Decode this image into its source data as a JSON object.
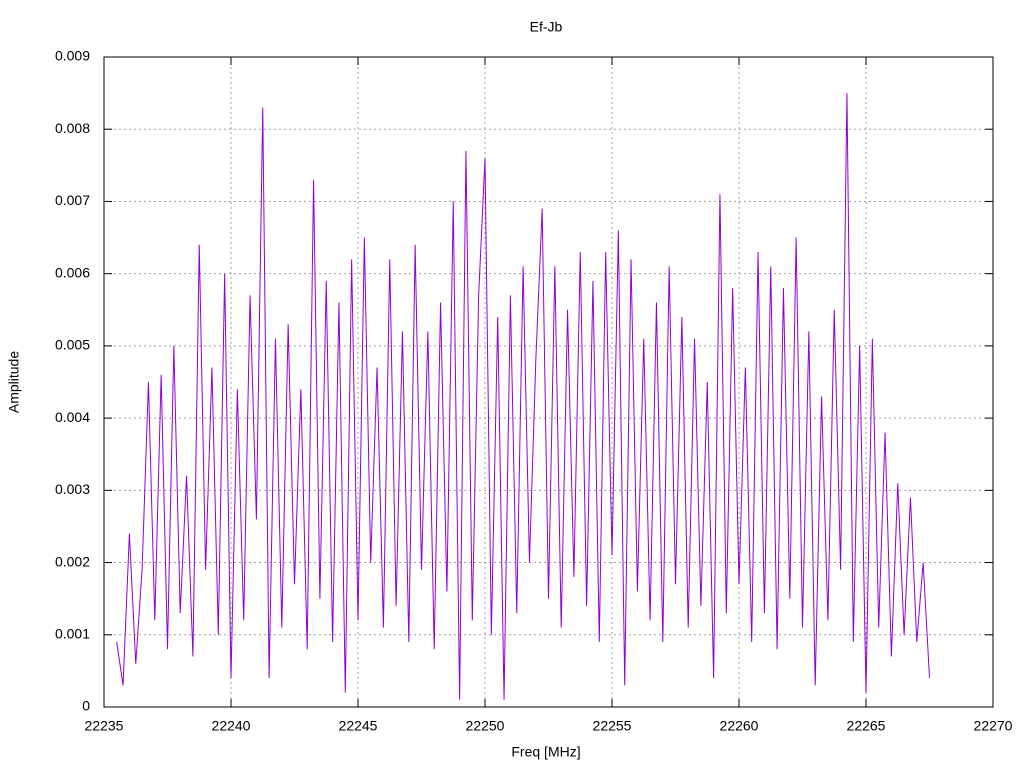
{
  "chart_data": {
    "type": "line",
    "title": "Ef-Jb",
    "xlabel": "Freq [MHz]",
    "ylabel": "Amplitude",
    "color": "#9400d3",
    "grid": true,
    "xlim": [
      22235,
      22270
    ],
    "xticks": [
      22235,
      22240,
      22245,
      22250,
      22255,
      22260,
      22265,
      22270
    ],
    "ylim": [
      0,
      0.009
    ],
    "yticks": [
      0,
      0.001,
      0.002,
      0.003,
      0.004,
      0.005,
      0.006,
      0.007,
      0.008,
      0.009
    ],
    "x": [
      22235.5,
      22235.75,
      22236,
      22236.25,
      22236.5,
      22236.75,
      22237,
      22237.25,
      22237.5,
      22237.75,
      22238,
      22238.25,
      22238.5,
      22238.75,
      22239,
      22239.25,
      22239.5,
      22239.75,
      22240,
      22240.25,
      22240.5,
      22240.75,
      22241,
      22241.25,
      22241.5,
      22241.75,
      22242,
      22242.25,
      22242.5,
      22242.75,
      22243,
      22243.25,
      22243.5,
      22243.75,
      22244,
      22244.25,
      22244.5,
      22244.75,
      22245,
      22245.25,
      22245.5,
      22245.75,
      22246,
      22246.25,
      22246.5,
      22246.75,
      22247,
      22247.25,
      22247.5,
      22247.75,
      22248,
      22248.25,
      22248.5,
      22248.75,
      22249,
      22249.25,
      22249.5,
      22249.75,
      22250,
      22250.25,
      22250.5,
      22250.75,
      22251,
      22251.25,
      22251.5,
      22251.75,
      22252,
      22252.25,
      22252.5,
      22252.75,
      22253,
      22253.25,
      22253.5,
      22253.75,
      22254,
      22254.25,
      22254.5,
      22254.75,
      22255,
      22255.25,
      22255.5,
      22255.75,
      22256,
      22256.25,
      22256.5,
      22256.75,
      22257,
      22257.25,
      22257.5,
      22257.75,
      22258,
      22258.25,
      22258.5,
      22258.75,
      22259,
      22259.25,
      22259.5,
      22259.75,
      22260,
      22260.25,
      22260.5,
      22260.75,
      22261,
      22261.25,
      22261.5,
      22261.75,
      22262,
      22262.25,
      22262.5,
      22262.75,
      22263,
      22263.25,
      22263.5,
      22263.75,
      22264,
      22264.25,
      22264.5,
      22264.75,
      22265,
      22265.25,
      22265.5,
      22265.75,
      22266,
      22266.25,
      22266.5,
      22266.75,
      22267,
      22267.25,
      22267.5
    ],
    "values": [
      0.0009,
      0.0003,
      0.0024,
      0.0006,
      0.0019,
      0.0045,
      0.0012,
      0.0046,
      0.0008,
      0.005,
      0.0013,
      0.0032,
      0.0007,
      0.0064,
      0.0019,
      0.0047,
      0.001,
      0.006,
      0.0004,
      0.0044,
      0.0012,
      0.0057,
      0.0026,
      0.0083,
      0.0004,
      0.0051,
      0.0011,
      0.0053,
      0.0017,
      0.0044,
      0.0008,
      0.0073,
      0.0015,
      0.0059,
      0.0009,
      0.0056,
      0.0002,
      0.0062,
      0.0012,
      0.0065,
      0.002,
      0.0047,
      0.0011,
      0.0062,
      0.0014,
      0.0052,
      0.0009,
      0.0064,
      0.0019,
      0.0052,
      0.0008,
      0.0056,
      0.0016,
      0.007,
      0.0001,
      0.0077,
      0.0012,
      0.0057,
      0.0076,
      0.001,
      0.0054,
      0.0001,
      0.0057,
      0.0013,
      0.0061,
      0.002,
      0.0048,
      0.0069,
      0.0015,
      0.0061,
      0.0011,
      0.0055,
      0.0018,
      0.0063,
      0.0014,
      0.0059,
      0.0009,
      0.0063,
      0.0021,
      0.0066,
      0.0003,
      0.0062,
      0.0016,
      0.0051,
      0.0012,
      0.0056,
      0.0009,
      0.0061,
      0.0017,
      0.0054,
      0.0011,
      0.0051,
      0.0014,
      0.0045,
      0.0004,
      0.0071,
      0.0013,
      0.0058,
      0.0017,
      0.0047,
      0.0009,
      0.0063,
      0.0013,
      0.0061,
      0.0008,
      0.0058,
      0.0015,
      0.0065,
      0.0011,
      0.0052,
      0.0003,
      0.0043,
      0.0012,
      0.0055,
      0.0019,
      0.0085,
      0.0009,
      0.005,
      0.0002,
      0.0051,
      0.0011,
      0.0038,
      0.0007,
      0.0031,
      0.001,
      0.0029,
      0.0009,
      0.002,
      0.0004
    ]
  }
}
